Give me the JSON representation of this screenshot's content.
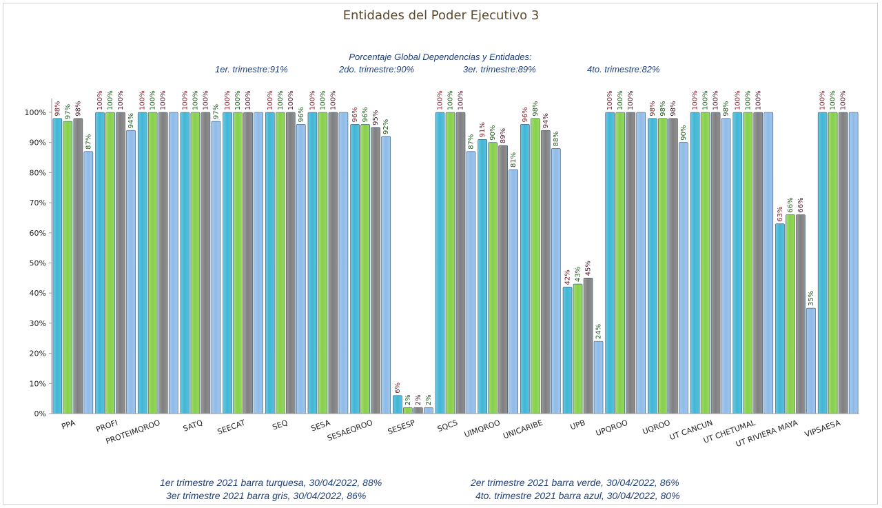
{
  "chart_data": {
    "type": "bar",
    "title": "Entidades del Poder Ejecutivo 3",
    "subtitle": {
      "heading": "Porcentaje Global  Dependencias y Entidades:",
      "q1": "1er. trimestre:91%",
      "q2": "2do. trimestre:90%",
      "q3": "3er. trimestre:89%",
      "q4": "4to. trimestre:82%"
    },
    "ylim": [
      0,
      100
    ],
    "yticks": [
      "0%",
      "10%",
      "20%",
      "30%",
      "40%",
      "50%",
      "60%",
      "70%",
      "80%",
      "90%",
      "100%"
    ],
    "grid": false,
    "categories": [
      "PPA",
      "PROFI",
      "PROTEIMQROO",
      "SATQ",
      "SEECAT",
      "SEQ",
      "SESA",
      "SESAEQROO",
      "SESESP",
      "SQCS",
      "UIMQROO",
      "UNICARIBE",
      "UPB",
      "UPQROO",
      "UQROO",
      "UT CANCUN",
      "UT CHETUMAL",
      "UT RIVIERA MAYA",
      "VIPSAESA"
    ],
    "series": [
      {
        "color": "#3fb6d6",
        "label_color": "#7a1f2a",
        "values": [
          98,
          100,
          100,
          100,
          100,
          100,
          100,
          96,
          6,
          100,
          91,
          96,
          42,
          100,
          98,
          100,
          100,
          63,
          100
        ],
        "labels": [
          "98%",
          "100%",
          "100%",
          "100%",
          "100%",
          "100%",
          "100%",
          "96%",
          "6%",
          "100%",
          "91%",
          "96%",
          "42%",
          "100%",
          "98%",
          "100%",
          "100%",
          "63%",
          "100%"
        ]
      },
      {
        "color": "#86d04a",
        "label_color": "#1e5a1e",
        "values": [
          97,
          100,
          100,
          100,
          100,
          100,
          100,
          96,
          2,
          100,
          90,
          98,
          43,
          100,
          98,
          100,
          100,
          66,
          100
        ],
        "labels": [
          "97%",
          "100%",
          "100%",
          "100%",
          "100%",
          "100%",
          "100%",
          "96%",
          "2%",
          "100%",
          "90%",
          "98%",
          "43%",
          "100%",
          "98%",
          "100%",
          "100%",
          "66%",
          "100%"
        ]
      },
      {
        "color": "#7f7f7f",
        "label_color": "#4a1a2e",
        "values": [
          98,
          100,
          100,
          100,
          100,
          100,
          100,
          95,
          2,
          100,
          89,
          94,
          45,
          100,
          98,
          100,
          100,
          66,
          100
        ],
        "labels": [
          "98%",
          "100%",
          "100%",
          "100%",
          "100%",
          "100%",
          "100%",
          "95%",
          "2%",
          "100%",
          "89%",
          "94%",
          "45%",
          "100%",
          "98%",
          "100%",
          "100%",
          "66%",
          "100%"
        ]
      },
      {
        "color": "#8fbbe8",
        "label_color": "#1e5a1e",
        "values": [
          87,
          94,
          100,
          97,
          100,
          96,
          100,
          92,
          2,
          87,
          81,
          88,
          24,
          100,
          90,
          98,
          100,
          35,
          100
        ],
        "labels": [
          "87%",
          "94%",
          "",
          "97%",
          "",
          "96%",
          "",
          "92%",
          "2%",
          "87%",
          "81%",
          "88%",
          "24%",
          "",
          "90%",
          "98%",
          "",
          "35%",
          ""
        ]
      }
    ]
  },
  "footer": {
    "line1_left": "1er trimestre  2021 barra turquesa,   30/04/2022, 88%",
    "line1_right": "2er trimestre  2021 barra verde,  30/04/2022, 86%",
    "line2_left": "3er trimestre 2021 barra gris, 30/04/2022, 86%",
    "line2_right": "4to. trimestre 2021 barra azul, 30/04/2022, 80%"
  }
}
